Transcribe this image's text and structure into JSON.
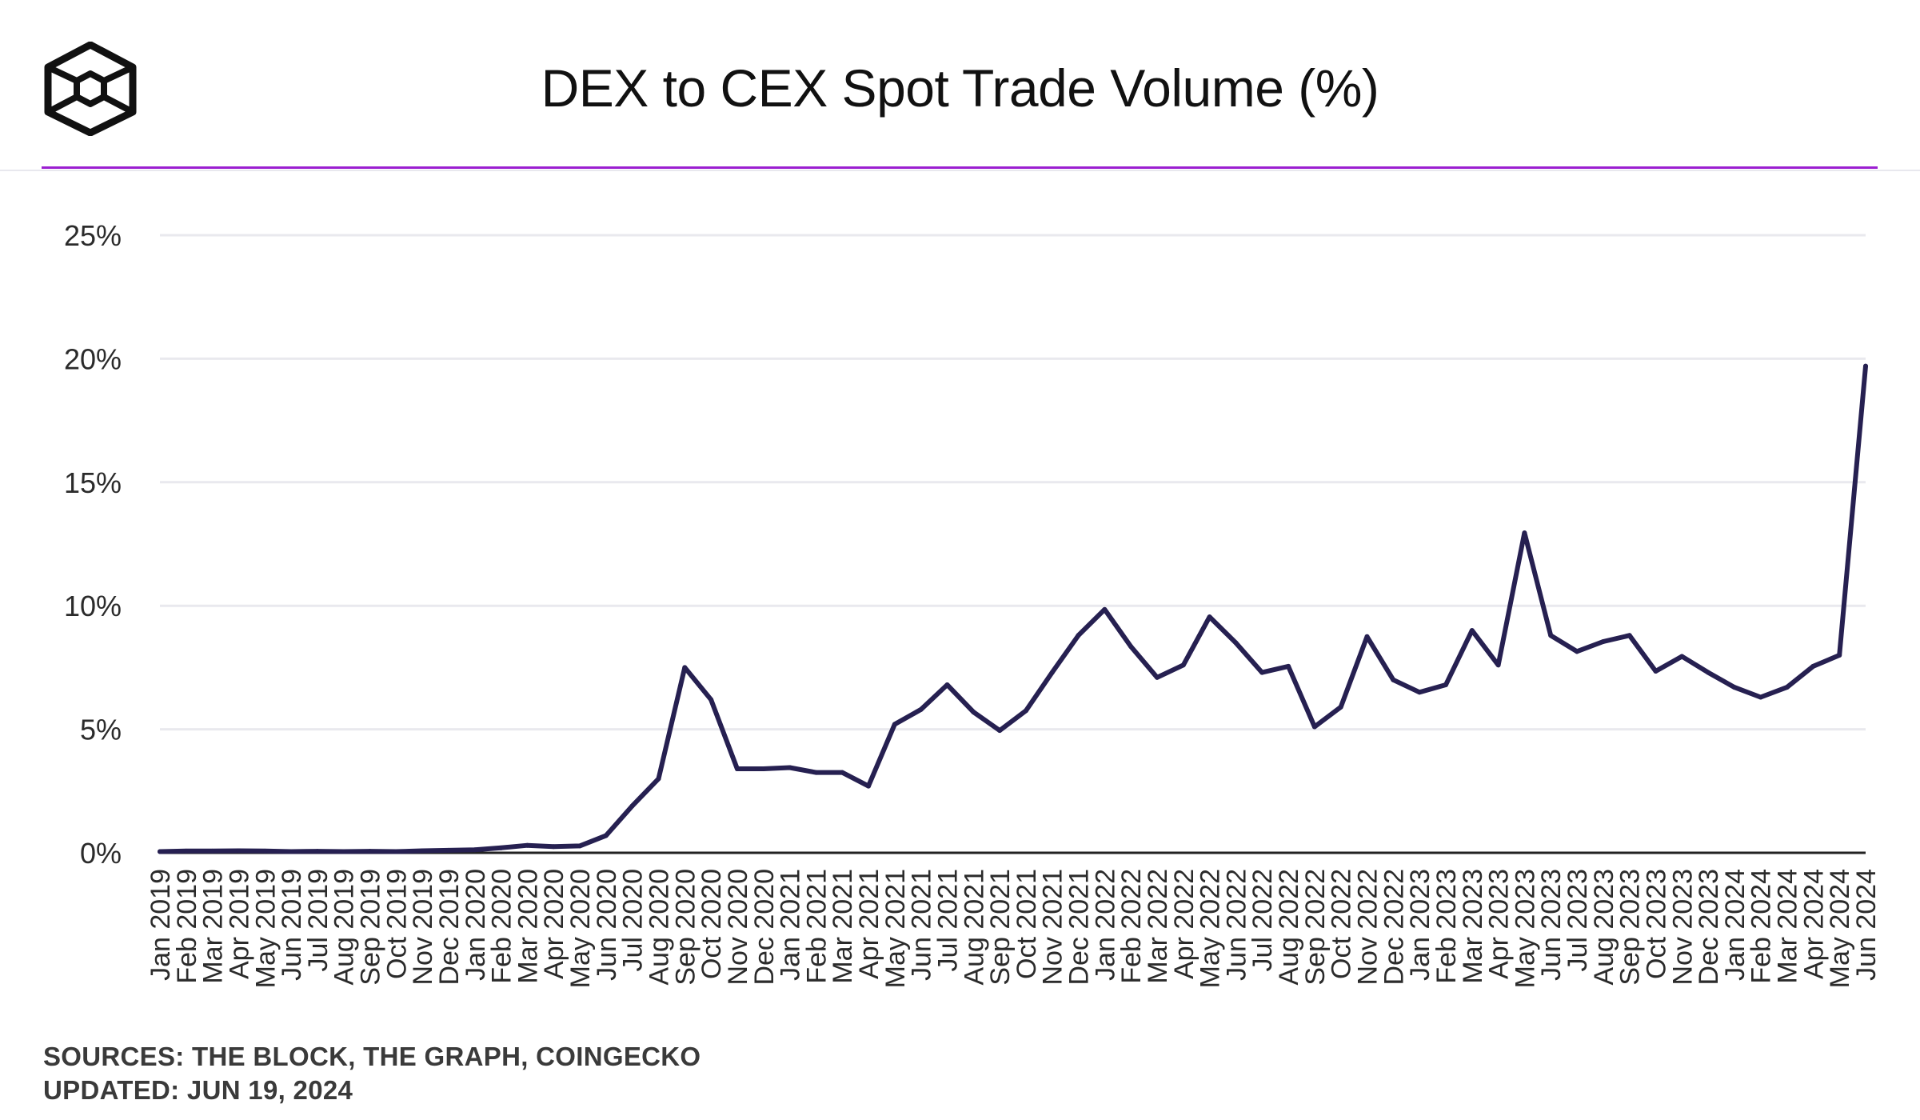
{
  "header": {
    "logo_icon": "the-block-cube-logo-icon"
  },
  "colors": {
    "accent": "#9b1fd1",
    "line": "#262051",
    "grid": "#e9e9ee",
    "axis": "#222222",
    "text": "#2b2b2b"
  },
  "chart_data": {
    "type": "line",
    "title": "DEX to CEX Spot Trade Volume (%)",
    "xlabel": "",
    "ylabel": "",
    "ylim": [
      0,
      25
    ],
    "yticks": [
      0,
      5,
      10,
      15,
      20,
      25
    ],
    "ytick_labels": [
      "0%",
      "5%",
      "10%",
      "15%",
      "20%",
      "25%"
    ],
    "grid": true,
    "categories": [
      "Jan 2019",
      "Feb 2019",
      "Mar 2019",
      "Apr 2019",
      "May 2019",
      "Jun 2019",
      "Jul 2019",
      "Aug 2019",
      "Sep 2019",
      "Oct 2019",
      "Nov 2019",
      "Dec 2019",
      "Jan 2020",
      "Feb 2020",
      "Mar 2020",
      "Apr 2020",
      "May 2020",
      "Jun 2020",
      "Jul 2020",
      "Aug 2020",
      "Sep 2020",
      "Oct 2020",
      "Nov 2020",
      "Dec 2020",
      "Jan 2021",
      "Feb 2021",
      "Mar 2021",
      "Apr 2021",
      "May 2021",
      "Jun 2021",
      "Jul 2021",
      "Aug 2021",
      "Sep 2021",
      "Oct 2021",
      "Nov 2021",
      "Dec 2021",
      "Jan 2022",
      "Feb 2022",
      "Mar 2022",
      "Apr 2022",
      "May 2022",
      "Jun 2022",
      "Jul 2022",
      "Aug 2022",
      "Sep 2022",
      "Oct 2022",
      "Nov 2022",
      "Dec 2022",
      "Jan 2023",
      "Feb 2023",
      "Mar 2023",
      "Apr 2023",
      "May 2023",
      "Jun 2023",
      "Jul 2023",
      "Aug 2023",
      "Sep 2023",
      "Oct 2023",
      "Nov 2023",
      "Dec 2023",
      "Jan 2024",
      "Feb 2024",
      "Mar 2024",
      "Apr 2024",
      "May 2024",
      "Jun 2024"
    ],
    "series": [
      {
        "values": [
          0.05,
          0.07,
          0.07,
          0.08,
          0.07,
          0.05,
          0.06,
          0.05,
          0.06,
          0.05,
          0.08,
          0.1,
          0.12,
          0.2,
          0.3,
          0.25,
          0.28,
          0.7,
          1.9,
          3.0,
          7.5,
          6.2,
          3.4,
          3.4,
          3.45,
          3.25,
          3.25,
          2.7,
          5.2,
          5.8,
          6.8,
          5.7,
          4.95,
          5.75,
          7.3,
          8.8,
          9.85,
          8.35,
          7.1,
          7.6,
          9.55,
          8.5,
          7.3,
          7.55,
          5.1,
          5.9,
          8.75,
          7.0,
          6.5,
          6.8,
          9.0,
          7.6,
          12.95,
          8.8,
          8.15,
          8.55,
          8.8,
          7.35,
          7.95,
          7.3,
          6.7,
          6.3,
          6.7,
          7.55,
          8.0,
          19.7
        ]
      }
    ]
  },
  "footer": {
    "sources": "SOURCES: THE BLOCK, THE GRAPH, COINGECKO",
    "updated": "UPDATED: JUN 19, 2024"
  }
}
